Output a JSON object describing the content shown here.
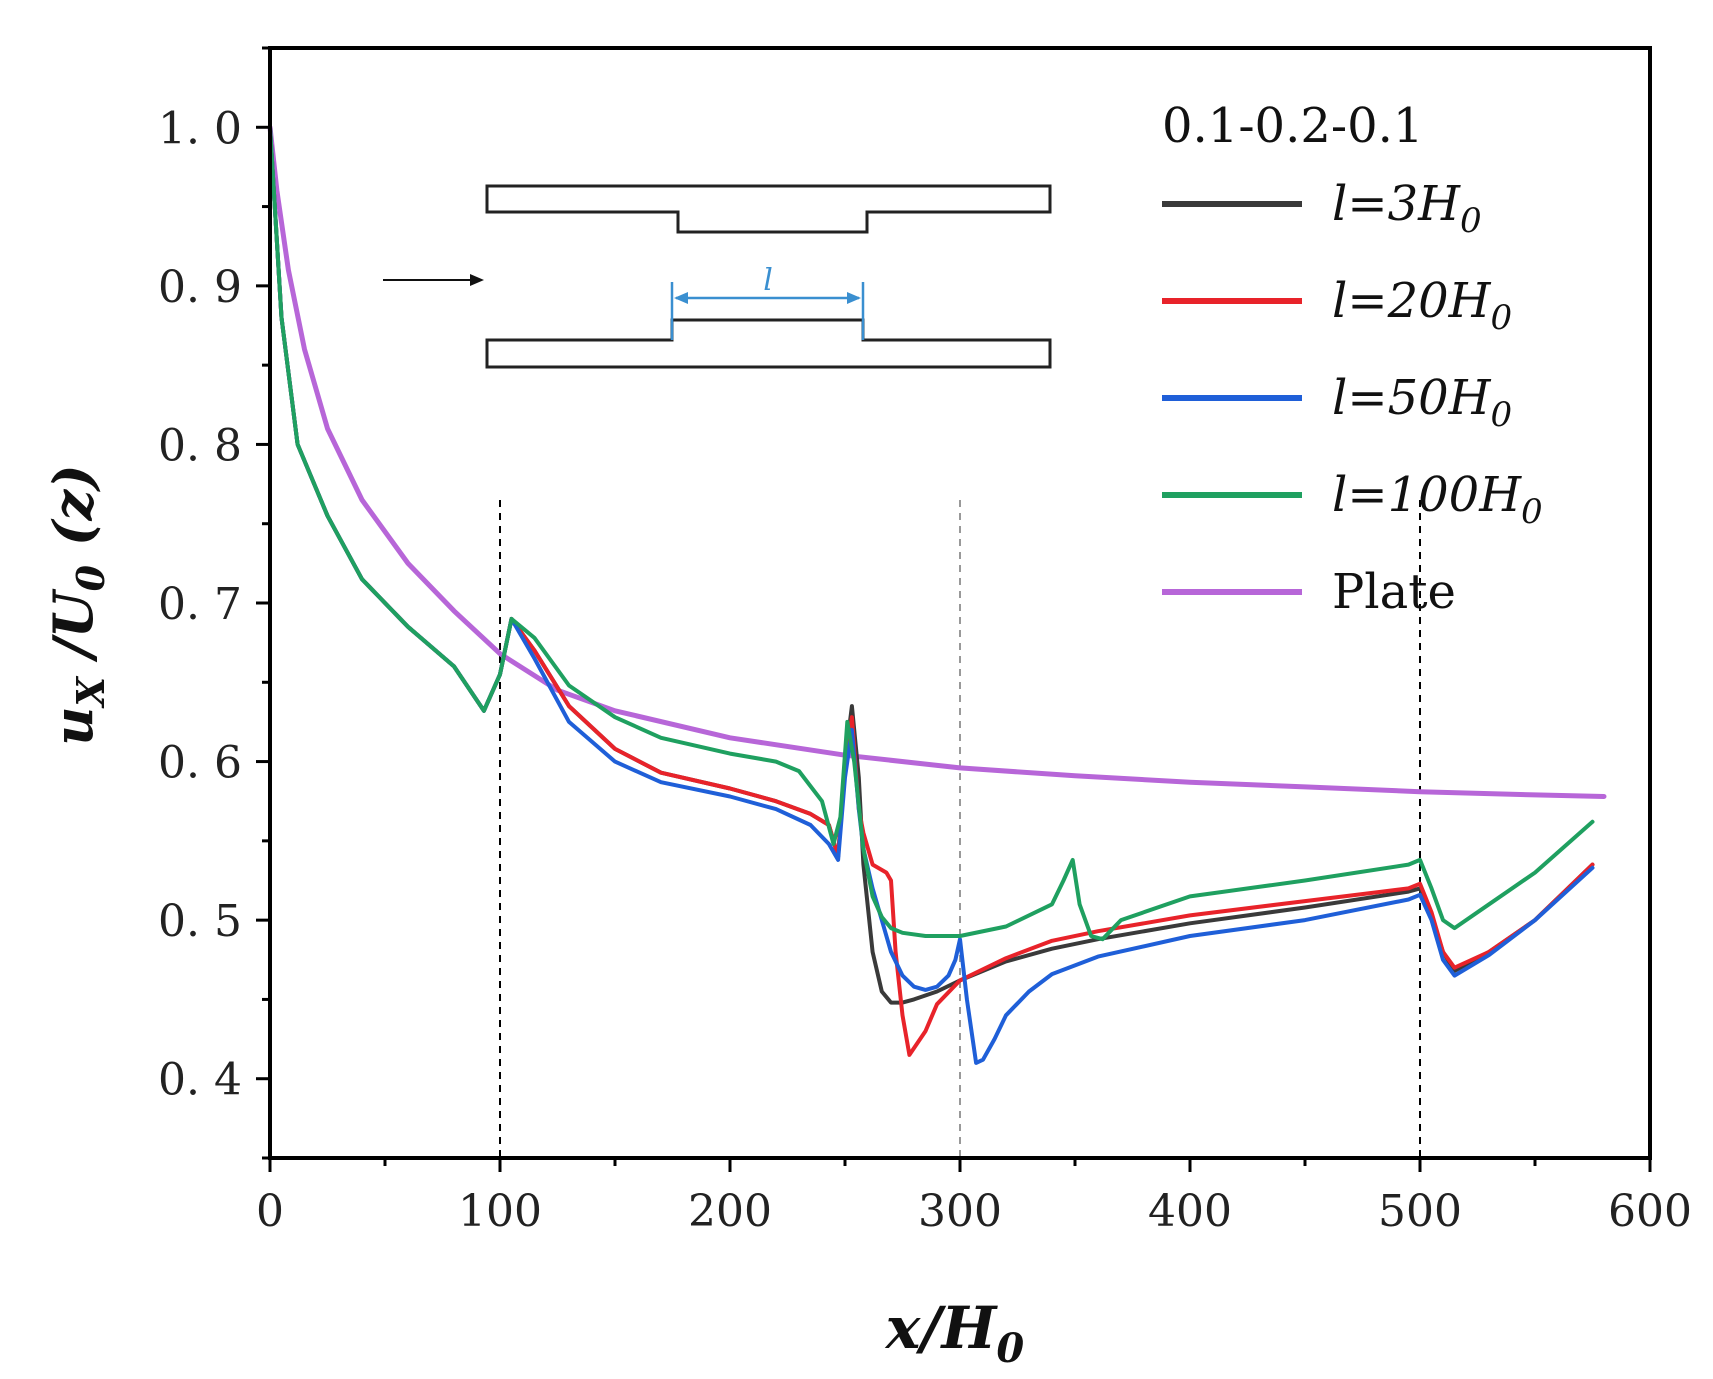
{
  "chart_data": {
    "type": "line",
    "title": "",
    "xlabel": {
      "main": "x/H",
      "sub": "0"
    },
    "ylabel": {
      "u": "u",
      "x": "X",
      "mid": " /U",
      "sub": "0",
      "tail": " (z)"
    },
    "xlim": [
      0,
      600
    ],
    "ylim": [
      0.35,
      1.05
    ],
    "xticks": [
      0,
      100,
      200,
      300,
      400,
      500,
      600
    ],
    "xtick_labels": [
      "0",
      "100",
      "200",
      "300",
      "400",
      "500",
      "600"
    ],
    "yticks": [
      0.4,
      0.5,
      0.6,
      0.7,
      0.8,
      0.9,
      1.0
    ],
    "ytick_labels": [
      "0. 4",
      "0. 5",
      "0. 6",
      "0. 7",
      "0. 8",
      "0. 9",
      "1. 0"
    ],
    "legend": {
      "title": "0.1-0.2-0.1",
      "position": "top-right"
    },
    "reference_lines": [
      {
        "x": 100,
        "color": "#000000"
      },
      {
        "x": 300,
        "color": "#999999"
      },
      {
        "x": 500,
        "color": "#000000"
      }
    ],
    "inset": {
      "description_label": "l",
      "position": "top-left"
    },
    "series": [
      {
        "name": "l=3H0",
        "label_main": "l=3H",
        "label_sub": "0",
        "color": "#3a3a3a",
        "x": [
          0,
          5,
          12,
          25,
          40,
          60,
          80,
          93,
          100,
          105,
          115,
          130,
          150,
          170,
          200,
          220,
          235,
          243,
          247,
          250,
          253,
          256,
          258,
          262,
          266,
          270,
          275,
          280,
          290,
          300,
          320,
          340,
          360,
          400,
          450,
          495,
          500,
          505,
          510,
          515,
          530,
          550,
          575
        ],
        "y": [
          1.0,
          0.88,
          0.8,
          0.755,
          0.715,
          0.685,
          0.66,
          0.632,
          0.655,
          0.69,
          0.67,
          0.635,
          0.608,
          0.593,
          0.583,
          0.575,
          0.567,
          0.56,
          0.54,
          0.6,
          0.635,
          0.59,
          0.535,
          0.48,
          0.455,
          0.448,
          0.448,
          0.45,
          0.455,
          0.462,
          0.474,
          0.482,
          0.488,
          0.498,
          0.508,
          0.518,
          0.52,
          0.502,
          0.48,
          0.468,
          0.48,
          0.5,
          0.535
        ]
      },
      {
        "name": "l=20H0",
        "label_main": "l=20H",
        "label_sub": "0",
        "color": "#e8232a",
        "x": [
          0,
          5,
          12,
          25,
          40,
          60,
          80,
          93,
          100,
          105,
          115,
          130,
          150,
          170,
          200,
          220,
          235,
          243,
          247,
          250,
          253,
          256,
          258,
          262,
          268,
          270,
          272,
          275,
          278,
          285,
          290,
          300,
          320,
          340,
          360,
          400,
          450,
          495,
          500,
          505,
          510,
          515,
          530,
          550,
          575
        ],
        "y": [
          1.0,
          0.88,
          0.8,
          0.755,
          0.715,
          0.685,
          0.66,
          0.632,
          0.655,
          0.69,
          0.67,
          0.635,
          0.608,
          0.593,
          0.583,
          0.575,
          0.567,
          0.56,
          0.54,
          0.6,
          0.628,
          0.57,
          0.555,
          0.535,
          0.53,
          0.525,
          0.48,
          0.44,
          0.415,
          0.43,
          0.447,
          0.462,
          0.476,
          0.487,
          0.493,
          0.503,
          0.512,
          0.52,
          0.523,
          0.505,
          0.48,
          0.47,
          0.48,
          0.5,
          0.535
        ]
      },
      {
        "name": "l=50H0",
        "label_main": "l=50H",
        "label_sub": "0",
        "color": "#1f5fd8",
        "x": [
          0,
          5,
          12,
          25,
          40,
          60,
          80,
          93,
          100,
          105,
          115,
          130,
          150,
          170,
          200,
          220,
          235,
          243,
          247,
          250,
          253,
          256,
          258,
          262,
          266,
          270,
          275,
          280,
          285,
          290,
          295,
          298,
          300,
          303,
          307,
          310,
          315,
          320,
          330,
          340,
          360,
          400,
          450,
          495,
          500,
          505,
          510,
          515,
          530,
          550,
          575
        ],
        "y": [
          1.0,
          0.88,
          0.8,
          0.755,
          0.715,
          0.685,
          0.66,
          0.632,
          0.655,
          0.69,
          0.665,
          0.625,
          0.6,
          0.587,
          0.578,
          0.57,
          0.56,
          0.548,
          0.538,
          0.59,
          0.62,
          0.57,
          0.545,
          0.52,
          0.5,
          0.48,
          0.465,
          0.458,
          0.456,
          0.458,
          0.465,
          0.475,
          0.488,
          0.45,
          0.41,
          0.412,
          0.425,
          0.44,
          0.455,
          0.466,
          0.477,
          0.49,
          0.5,
          0.513,
          0.516,
          0.5,
          0.475,
          0.465,
          0.478,
          0.5,
          0.533
        ]
      },
      {
        "name": "l=100H0",
        "label_main": "l=100H",
        "label_sub": "0",
        "color": "#1fa060",
        "x": [
          0,
          5,
          12,
          25,
          40,
          60,
          80,
          93,
          100,
          105,
          115,
          130,
          150,
          170,
          200,
          220,
          230,
          240,
          245,
          248,
          251,
          254,
          258,
          262,
          266,
          270,
          275,
          285,
          300,
          320,
          340,
          345,
          349,
          352,
          357,
          362,
          370,
          400,
          450,
          495,
          500,
          505,
          510,
          515,
          530,
          550,
          575
        ],
        "y": [
          1.0,
          0.88,
          0.8,
          0.755,
          0.715,
          0.685,
          0.66,
          0.632,
          0.655,
          0.69,
          0.678,
          0.648,
          0.628,
          0.615,
          0.605,
          0.6,
          0.594,
          0.575,
          0.548,
          0.565,
          0.625,
          0.6,
          0.545,
          0.515,
          0.502,
          0.495,
          0.492,
          0.49,
          0.49,
          0.496,
          0.51,
          0.525,
          0.538,
          0.51,
          0.49,
          0.488,
          0.5,
          0.515,
          0.525,
          0.535,
          0.538,
          0.52,
          0.5,
          0.495,
          0.51,
          0.53,
          0.562
        ]
      },
      {
        "name": "Plate",
        "label_main": "Plate",
        "label_sub": "",
        "color": "#b766d8",
        "x": [
          0,
          3,
          8,
          15,
          25,
          40,
          60,
          80,
          100,
          125,
          150,
          200,
          250,
          300,
          350,
          400,
          450,
          500,
          550,
          580
        ],
        "y": [
          1.0,
          0.96,
          0.91,
          0.86,
          0.81,
          0.765,
          0.725,
          0.695,
          0.668,
          0.645,
          0.632,
          0.615,
          0.604,
          0.596,
          0.591,
          0.587,
          0.584,
          0.581,
          0.579,
          0.578
        ]
      }
    ]
  }
}
